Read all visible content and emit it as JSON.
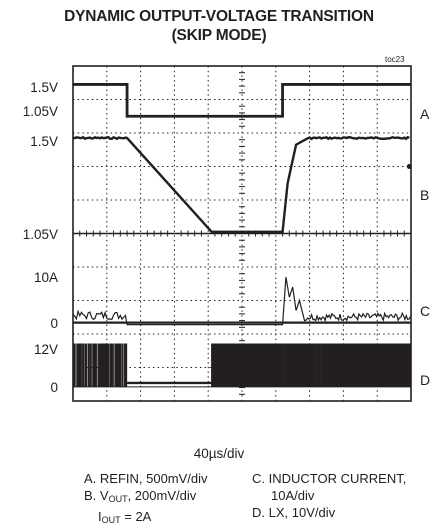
{
  "chart_data": {
    "type": "line",
    "title_line1": "DYNAMIC OUTPUT-VOLTAGE TRANSITION",
    "title_line2": "(SKIP MODE)",
    "figure_id": "toc23",
    "x_scale_label": "40µs/div",
    "y_labels": [
      "1.5V",
      "1.05V",
      "1.5V",
      "1.05V",
      "10A",
      "0",
      "12V",
      "0"
    ],
    "traces": [
      {
        "id": "A",
        "name": "REFIN",
        "scale": "500mV/div",
        "high": "1.5V",
        "low": "1.05V",
        "shape": "step down at 1.6 div, step up at 6.2 div"
      },
      {
        "id": "B",
        "name": "VOUT",
        "scale": "200mV/div",
        "high": "1.5V",
        "low": "1.05V",
        "shape": "ramp down 1.6–4.1 div, fast rise at 6.2 div"
      },
      {
        "id": "C",
        "name": "INDUCTOR CURRENT",
        "scale": "10A/div",
        "shape": "switching ripple, zero during ramp down, spike near 10A at rise"
      },
      {
        "id": "D",
        "name": "LX",
        "scale": "10V/div",
        "high": "12V",
        "low": "0",
        "shape": "switching pulses, idle 1.6–4.1 div, dense from 4.1 div"
      }
    ],
    "legend": {
      "a": "A. REFIN, 500mV/div",
      "b_main": "B. V",
      "b_sub": "OUT",
      "b_rest": ", 200mV/div",
      "i_main": "I",
      "i_sub": "OUT",
      "i_rest": " = 2A",
      "c1": "C. INDUCTOR CURRENT,",
      "c2": "10A/div",
      "d": "D. LX, 10V/div"
    },
    "grid": true
  }
}
